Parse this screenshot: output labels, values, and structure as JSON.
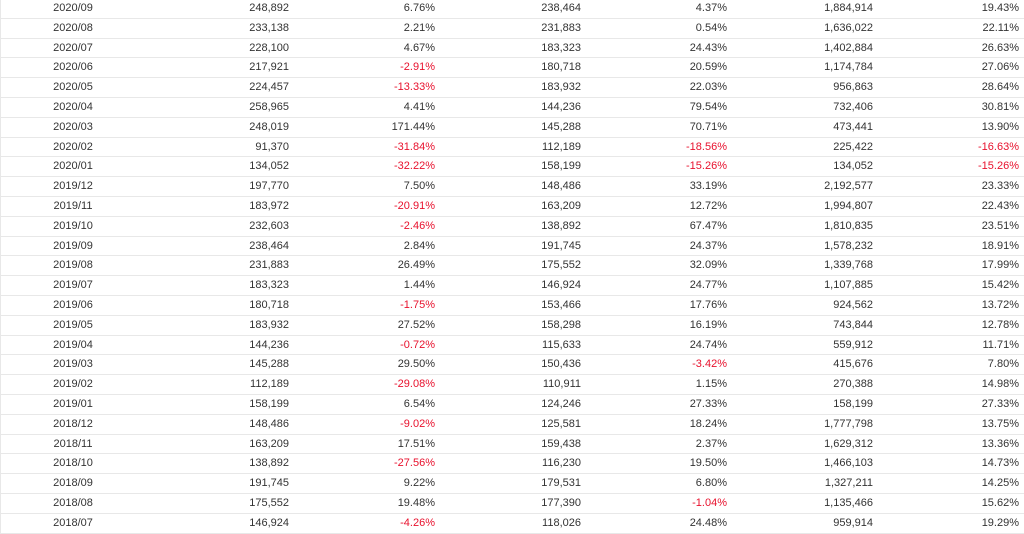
{
  "colors": {
    "negative": "#e8112d",
    "text": "#333333",
    "border": "#e8e8e8"
  },
  "rows": [
    [
      "2020/09",
      "248,892",
      "6.76%",
      "238,464",
      "4.37%",
      "1,884,914",
      "19.43%"
    ],
    [
      "2020/08",
      "233,138",
      "2.21%",
      "231,883",
      "0.54%",
      "1,636,022",
      "22.11%"
    ],
    [
      "2020/07",
      "228,100",
      "4.67%",
      "183,323",
      "24.43%",
      "1,402,884",
      "26.63%"
    ],
    [
      "2020/06",
      "217,921",
      "-2.91%",
      "180,718",
      "20.59%",
      "1,174,784",
      "27.06%"
    ],
    [
      "2020/05",
      "224,457",
      "-13.33%",
      "183,932",
      "22.03%",
      "956,863",
      "28.64%"
    ],
    [
      "2020/04",
      "258,965",
      "4.41%",
      "144,236",
      "79.54%",
      "732,406",
      "30.81%"
    ],
    [
      "2020/03",
      "248,019",
      "171.44%",
      "145,288",
      "70.71%",
      "473,441",
      "13.90%"
    ],
    [
      "2020/02",
      "91,370",
      "-31.84%",
      "112,189",
      "-18.56%",
      "225,422",
      "-16.63%"
    ],
    [
      "2020/01",
      "134,052",
      "-32.22%",
      "158,199",
      "-15.26%",
      "134,052",
      "-15.26%"
    ],
    [
      "2019/12",
      "197,770",
      "7.50%",
      "148,486",
      "33.19%",
      "2,192,577",
      "23.33%"
    ],
    [
      "2019/11",
      "183,972",
      "-20.91%",
      "163,209",
      "12.72%",
      "1,994,807",
      "22.43%"
    ],
    [
      "2019/10",
      "232,603",
      "-2.46%",
      "138,892",
      "67.47%",
      "1,810,835",
      "23.51%"
    ],
    [
      "2019/09",
      "238,464",
      "2.84%",
      "191,745",
      "24.37%",
      "1,578,232",
      "18.91%"
    ],
    [
      "2019/08",
      "231,883",
      "26.49%",
      "175,552",
      "32.09%",
      "1,339,768",
      "17.99%"
    ],
    [
      "2019/07",
      "183,323",
      "1.44%",
      "146,924",
      "24.77%",
      "1,107,885",
      "15.42%"
    ],
    [
      "2019/06",
      "180,718",
      "-1.75%",
      "153,466",
      "17.76%",
      "924,562",
      "13.72%"
    ],
    [
      "2019/05",
      "183,932",
      "27.52%",
      "158,298",
      "16.19%",
      "743,844",
      "12.78%"
    ],
    [
      "2019/04",
      "144,236",
      "-0.72%",
      "115,633",
      "24.74%",
      "559,912",
      "11.71%"
    ],
    [
      "2019/03",
      "145,288",
      "29.50%",
      "150,436",
      "-3.42%",
      "415,676",
      "7.80%"
    ],
    [
      "2019/02",
      "112,189",
      "-29.08%",
      "110,911",
      "1.15%",
      "270,388",
      "14.98%"
    ],
    [
      "2019/01",
      "158,199",
      "6.54%",
      "124,246",
      "27.33%",
      "158,199",
      "27.33%"
    ],
    [
      "2018/12",
      "148,486",
      "-9.02%",
      "125,581",
      "18.24%",
      "1,777,798",
      "13.75%"
    ],
    [
      "2018/11",
      "163,209",
      "17.51%",
      "159,438",
      "2.37%",
      "1,629,312",
      "13.36%"
    ],
    [
      "2018/10",
      "138,892",
      "-27.56%",
      "116,230",
      "19.50%",
      "1,466,103",
      "14.73%"
    ],
    [
      "2018/09",
      "191,745",
      "9.22%",
      "179,531",
      "6.80%",
      "1,327,211",
      "14.25%"
    ],
    [
      "2018/08",
      "175,552",
      "19.48%",
      "177,390",
      "-1.04%",
      "1,135,466",
      "15.62%"
    ],
    [
      "2018/07",
      "146,924",
      "-4.26%",
      "118,026",
      "24.48%",
      "959,914",
      "19.29%"
    ]
  ]
}
